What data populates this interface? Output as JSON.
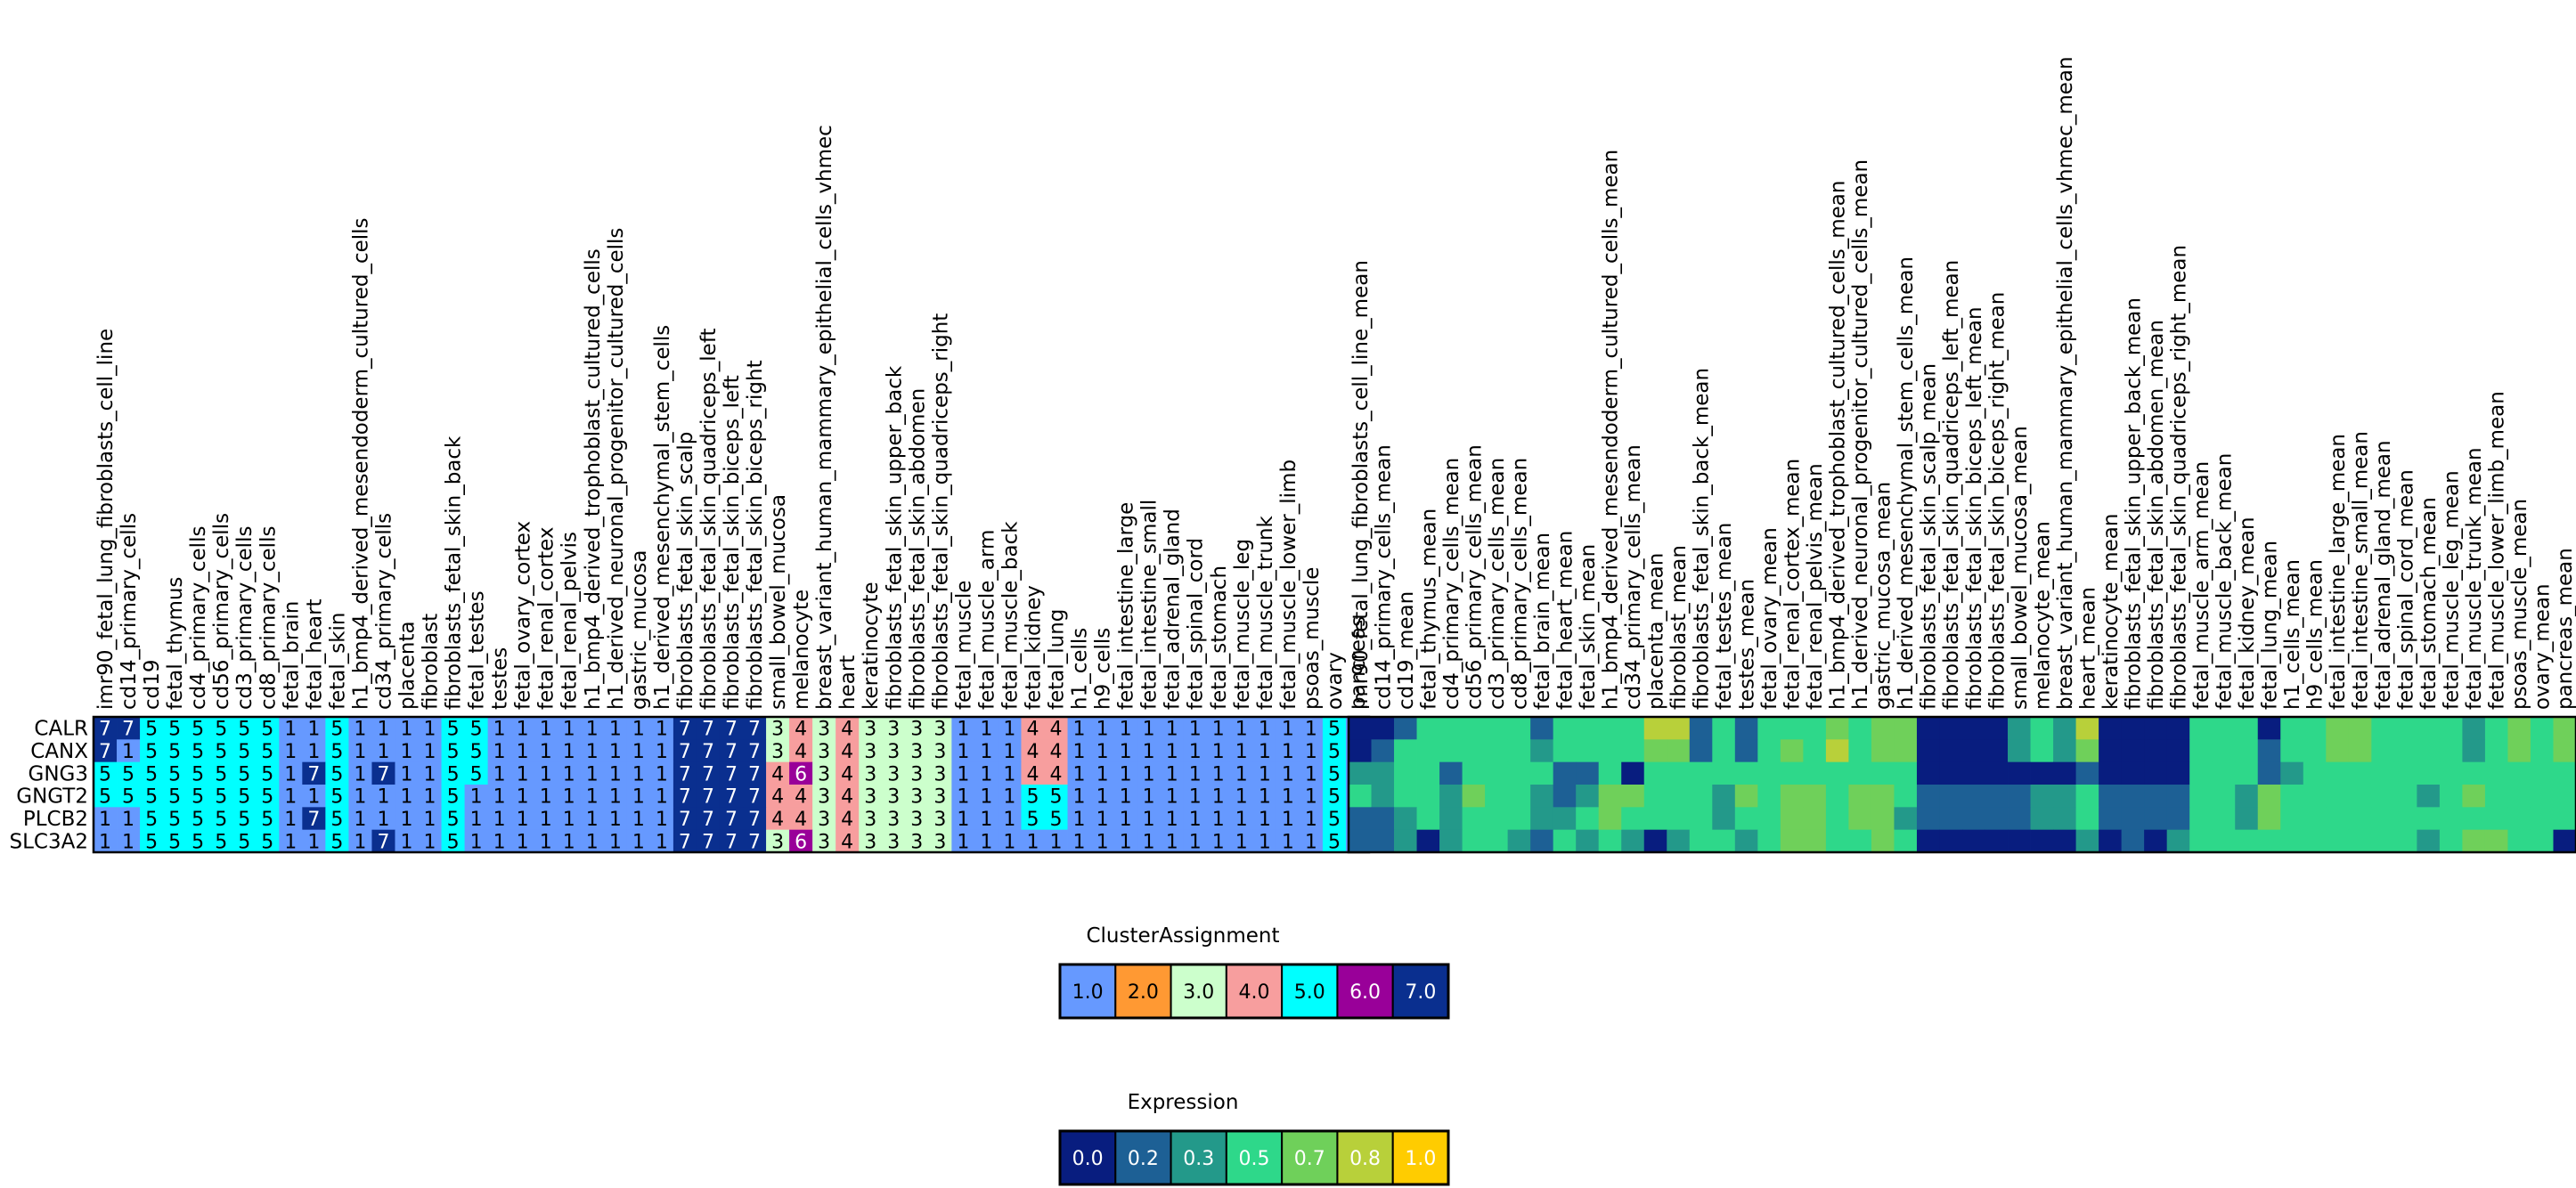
{
  "chart_data": [
    {
      "type": "heatmap",
      "name": "cluster-assignment-heatmap",
      "rows": [
        "CALR",
        "CANX",
        "GNG3",
        "GNGT2",
        "PLCB2",
        "SLC3A2"
      ],
      "columns": [
        "imr90_fetal_lung_fibroblasts_cell_line",
        "cd14_primary_cells",
        "cd19",
        "fetal_thymus",
        "cd4_primary_cells",
        "cd56_primary_cells",
        "cd3_primary_cells",
        "cd8_primary_cells",
        "fetal_brain",
        "fetal_heart",
        "fetal_skin",
        "h1_bmp4_derived_mesendoderm_cultured_cells",
        "cd34_primary_cells",
        "placenta",
        "fibroblast",
        "fibroblasts_fetal_skin_back",
        "fetal_testes",
        "testes",
        "fetal_ovary_cortex",
        "fetal_renal_cortex",
        "fetal_renal_pelvis",
        "h1_bmp4_derived_trophoblast_cultured_cells",
        "h1_derived_neuronal_progenitor_cultured_cells",
        "gastric_mucosa",
        "h1_derived_mesenchymal_stem_cells",
        "fibroblasts_fetal_skin_scalp",
        "fibroblasts_fetal_skin_quadriceps_left",
        "fibroblasts_fetal_skin_biceps_left",
        "fibroblasts_fetal_skin_biceps_right",
        "small_bowel_mucosa",
        "melanocyte",
        "breast_variant_human_mammary_epithelial_cells_vhmec",
        "heart",
        "keratinocyte",
        "fibroblasts_fetal_skin_upper_back",
        "fibroblasts_fetal_skin_abdomen",
        "fibroblasts_fetal_skin_quadriceps_right",
        "fetal_muscle",
        "fetal_muscle_arm",
        "fetal_muscle_back",
        "fetal_kidney",
        "fetal_lung",
        "h1_cells",
        "h9_cells",
        "fetal_intestine_large",
        "fetal_intestine_small",
        "fetal_adrenal_gland",
        "fetal_spinal_cord",
        "fetal_stomach",
        "fetal_muscle_leg",
        "fetal_muscle_trunk",
        "fetal_muscle_lower_limb",
        "psoas_muscle",
        "ovary",
        "pancreas"
      ],
      "values": [
        [
          7,
          7,
          5,
          5,
          5,
          5,
          5,
          5,
          1,
          1,
          5,
          1,
          1,
          1,
          1,
          5,
          5,
          1,
          1,
          1,
          1,
          1,
          1,
          1,
          1,
          7,
          7,
          7,
          7,
          3,
          4,
          3,
          4,
          3,
          3,
          3,
          3,
          1,
          1,
          1,
          4,
          4,
          1,
          1,
          1,
          1,
          1,
          1,
          1,
          1,
          1,
          1,
          1,
          5,
          1
        ],
        [
          7,
          1,
          5,
          5,
          5,
          5,
          5,
          5,
          1,
          1,
          5,
          1,
          1,
          1,
          1,
          5,
          5,
          1,
          1,
          1,
          1,
          1,
          1,
          1,
          1,
          7,
          7,
          7,
          7,
          3,
          4,
          3,
          4,
          3,
          3,
          3,
          3,
          1,
          1,
          1,
          4,
          4,
          1,
          1,
          1,
          1,
          1,
          1,
          1,
          1,
          1,
          1,
          1,
          5,
          1
        ],
        [
          5,
          5,
          5,
          5,
          5,
          5,
          5,
          5,
          1,
          7,
          5,
          1,
          7,
          1,
          1,
          5,
          5,
          1,
          1,
          1,
          1,
          1,
          1,
          1,
          1,
          7,
          7,
          7,
          7,
          4,
          6,
          3,
          4,
          3,
          3,
          3,
          3,
          1,
          1,
          1,
          4,
          4,
          1,
          1,
          1,
          1,
          1,
          1,
          1,
          1,
          1,
          1,
          1,
          5,
          1
        ],
        [
          5,
          5,
          5,
          5,
          5,
          5,
          5,
          5,
          1,
          1,
          5,
          1,
          1,
          1,
          1,
          5,
          1,
          1,
          1,
          1,
          1,
          1,
          1,
          1,
          1,
          7,
          7,
          7,
          7,
          4,
          4,
          3,
          4,
          3,
          3,
          3,
          3,
          1,
          1,
          1,
          5,
          5,
          1,
          1,
          1,
          1,
          1,
          1,
          1,
          1,
          1,
          1,
          1,
          5,
          1
        ],
        [
          1,
          1,
          5,
          5,
          5,
          5,
          5,
          5,
          1,
          7,
          5,
          1,
          1,
          1,
          1,
          5,
          1,
          1,
          1,
          1,
          1,
          1,
          1,
          1,
          1,
          7,
          7,
          7,
          7,
          4,
          4,
          3,
          4,
          3,
          3,
          3,
          3,
          1,
          1,
          1,
          5,
          5,
          1,
          1,
          1,
          1,
          1,
          1,
          1,
          1,
          1,
          1,
          1,
          5,
          1
        ],
        [
          1,
          1,
          5,
          5,
          5,
          5,
          5,
          5,
          1,
          1,
          5,
          1,
          7,
          1,
          1,
          5,
          1,
          1,
          1,
          1,
          1,
          1,
          1,
          1,
          1,
          7,
          7,
          7,
          7,
          3,
          6,
          3,
          4,
          3,
          3,
          3,
          3,
          1,
          1,
          1,
          1,
          1,
          1,
          1,
          1,
          1,
          1,
          1,
          1,
          1,
          1,
          1,
          1,
          5,
          1
        ]
      ]
    },
    {
      "type": "heatmap",
      "name": "expression-heatmap",
      "rows": [
        "CALR",
        "CANX",
        "GNG3",
        "GNGT2",
        "PLCB2",
        "SLC3A2"
      ],
      "columns": [
        "imr90_fetal_lung_fibroblasts_cell_line_mean",
        "cd14_primary_cells_mean",
        "cd19_mean",
        "fetal_thymus_mean",
        "cd4_primary_cells_mean",
        "cd56_primary_cells_mean",
        "cd3_primary_cells_mean",
        "cd8_primary_cells_mean",
        "fetal_brain_mean",
        "fetal_heart_mean",
        "fetal_skin_mean",
        "h1_bmp4_derived_mesendoderm_cultured_cells_mean",
        "cd34_primary_cells_mean",
        "placenta_mean",
        "fibroblast_mean",
        "fibroblasts_fetal_skin_back_mean",
        "fetal_testes_mean",
        "testes_mean",
        "fetal_ovary_mean",
        "fetal_renal_cortex_mean",
        "fetal_renal_pelvis_mean",
        "h1_bmp4_derived_trophoblast_cultured_cells_mean",
        "h1_derived_neuronal_progenitor_cultured_cells_mean",
        "gastric_mucosa_mean",
        "h1_derived_mesenchymal_stem_cells_mean",
        "fibroblasts_fetal_skin_scalp_mean",
        "fibroblasts_fetal_skin_quadriceps_left_mean",
        "fibroblasts_fetal_skin_biceps_left_mean",
        "fibroblasts_fetal_skin_biceps_right_mean",
        "small_bowel_mucosa_mean",
        "melanocyte_mean",
        "breast_variant_human_mammary_epithelial_cells_vhmec_mean",
        "heart_mean",
        "keratinocyte_mean",
        "fibroblasts_fetal_skin_upper_back_mean",
        "fibroblasts_fetal_skin_abdomen_mean",
        "fibroblasts_fetal_skin_quadriceps_right_mean",
        "fetal_muscle_arm_mean",
        "fetal_muscle_back_mean",
        "fetal_kidney_mean",
        "fetal_lung_mean",
        "h1_cells_mean",
        "h9_cells_mean",
        "fetal_intestine_large_mean",
        "fetal_intestine_small_mean",
        "fetal_adrenal_gland_mean",
        "fetal_spinal_cord_mean",
        "fetal_stomach_mean",
        "fetal_muscle_leg_mean",
        "fetal_muscle_trunk_mean",
        "fetal_muscle_lower_limb_mean",
        "psoas_muscle_mean",
        "ovary_mean",
        "pancreas_mean"
      ],
      "values": [
        [
          0.0,
          0.0,
          0.2,
          0.5,
          0.5,
          0.5,
          0.5,
          0.5,
          0.2,
          0.5,
          0.5,
          0.5,
          0.5,
          0.8,
          0.8,
          0.2,
          0.5,
          0.2,
          0.5,
          0.5,
          0.5,
          0.7,
          0.5,
          0.7,
          0.7,
          0.0,
          0.0,
          0.0,
          0.0,
          0.3,
          0.5,
          0.3,
          0.8,
          0.0,
          0.0,
          0.0,
          0.0,
          0.5,
          0.5,
          0.5,
          0.0,
          0.5,
          0.5,
          0.7,
          0.7,
          0.5,
          0.5,
          0.5,
          0.5,
          0.3,
          0.5,
          0.7,
          0.5,
          0.7
        ],
        [
          0.0,
          0.2,
          0.5,
          0.5,
          0.5,
          0.5,
          0.5,
          0.5,
          0.3,
          0.5,
          0.5,
          0.5,
          0.5,
          0.7,
          0.7,
          0.2,
          0.5,
          0.2,
          0.5,
          0.7,
          0.5,
          0.8,
          0.5,
          0.7,
          0.7,
          0.0,
          0.0,
          0.0,
          0.0,
          0.3,
          0.5,
          0.3,
          0.7,
          0.0,
          0.0,
          0.0,
          0.0,
          0.5,
          0.5,
          0.5,
          0.2,
          0.5,
          0.5,
          0.7,
          0.7,
          0.5,
          0.5,
          0.5,
          0.5,
          0.3,
          0.5,
          0.7,
          0.5,
          0.7
        ],
        [
          0.3,
          0.3,
          0.5,
          0.5,
          0.2,
          0.5,
          0.5,
          0.5,
          0.5,
          0.2,
          0.2,
          0.5,
          0.0,
          0.5,
          0.5,
          0.5,
          0.5,
          0.5,
          0.5,
          0.5,
          0.5,
          0.5,
          0.5,
          0.5,
          0.5,
          0.0,
          0.0,
          0.0,
          0.0,
          0.0,
          0.0,
          0.0,
          0.2,
          0.0,
          0.0,
          0.0,
          0.0,
          0.5,
          0.5,
          0.5,
          0.2,
          0.3,
          0.5,
          0.5,
          0.5,
          0.5,
          0.5,
          0.5,
          0.5,
          0.5,
          0.5,
          0.5,
          0.5,
          0.5
        ],
        [
          0.5,
          0.3,
          0.5,
          0.5,
          0.3,
          0.7,
          0.5,
          0.5,
          0.3,
          0.2,
          0.3,
          0.7,
          0.7,
          0.5,
          0.5,
          0.5,
          0.3,
          0.7,
          0.5,
          0.7,
          0.7,
          0.5,
          0.7,
          0.7,
          0.5,
          0.2,
          0.2,
          0.2,
          0.2,
          0.2,
          0.3,
          0.3,
          0.5,
          0.2,
          0.2,
          0.2,
          0.2,
          0.5,
          0.5,
          0.3,
          0.7,
          0.5,
          0.5,
          0.5,
          0.5,
          0.5,
          0.5,
          0.3,
          0.5,
          0.7,
          0.5,
          0.5,
          0.5,
          0.5
        ],
        [
          0.2,
          0.2,
          0.3,
          0.5,
          0.3,
          0.5,
          0.5,
          0.5,
          0.3,
          0.3,
          0.5,
          0.7,
          0.5,
          0.5,
          0.5,
          0.5,
          0.3,
          0.5,
          0.5,
          0.7,
          0.7,
          0.5,
          0.7,
          0.7,
          0.3,
          0.2,
          0.2,
          0.2,
          0.2,
          0.2,
          0.3,
          0.3,
          0.5,
          0.2,
          0.2,
          0.2,
          0.2,
          0.5,
          0.5,
          0.3,
          0.7,
          0.5,
          0.5,
          0.5,
          0.5,
          0.5,
          0.5,
          0.5,
          0.5,
          0.5,
          0.5,
          0.5,
          0.5,
          0.5
        ],
        [
          0.2,
          0.2,
          0.3,
          0.0,
          0.3,
          0.5,
          0.5,
          0.3,
          0.2,
          0.5,
          0.3,
          0.5,
          0.3,
          0.0,
          0.3,
          0.5,
          0.5,
          0.3,
          0.5,
          0.7,
          0.7,
          0.5,
          0.5,
          0.7,
          0.5,
          0.0,
          0.0,
          0.0,
          0.0,
          0.0,
          0.0,
          0.0,
          0.3,
          0.0,
          0.2,
          0.0,
          0.3,
          0.5,
          0.5,
          0.5,
          0.5,
          0.5,
          0.5,
          0.5,
          0.5,
          0.5,
          0.5,
          0.3,
          0.5,
          0.7,
          0.7,
          0.5,
          0.5,
          0.0
        ]
      ]
    }
  ],
  "legends": {
    "cluster": {
      "title": "ClusterAssignment",
      "entries": [
        {
          "label": "1.0",
          "color": "#6699ff"
        },
        {
          "label": "2.0",
          "color": "#ff9933"
        },
        {
          "label": "3.0",
          "color": "#ccffcc"
        },
        {
          "label": "4.0",
          "color": "#f79e9e"
        },
        {
          "label": "5.0",
          "color": "#00ffff"
        },
        {
          "label": "6.0",
          "color": "#990099"
        },
        {
          "label": "7.0",
          "color": "#0a2f8f"
        }
      ]
    },
    "expression": {
      "title": "Expression",
      "entries": [
        {
          "label": "0.0",
          "color": "#081d7f"
        },
        {
          "label": "0.2",
          "color": "#1d6095"
        },
        {
          "label": "0.3",
          "color": "#23998a"
        },
        {
          "label": "0.5",
          "color": "#2ed88a"
        },
        {
          "label": "0.7",
          "color": "#6fd05a"
        },
        {
          "label": "0.8",
          "color": "#b8d03a"
        },
        {
          "label": "1.0",
          "color": "#ffcc00"
        }
      ]
    }
  }
}
